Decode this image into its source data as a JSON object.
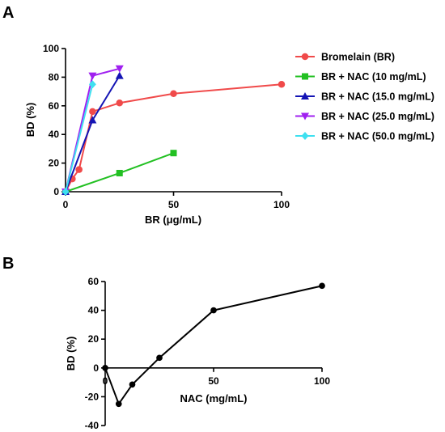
{
  "chart_data": [
    {
      "panel": "A",
      "type": "line",
      "xlabel": "BR (μg/mL)",
      "ylabel": "BD (%)",
      "xlim": [
        0,
        100
      ],
      "ylim": [
        0,
        100
      ],
      "xticks": [
        0,
        50,
        100
      ],
      "yticks": [
        0,
        20,
        40,
        60,
        80,
        100
      ],
      "grid": false,
      "legend_position": "right",
      "series": [
        {
          "name": "Bromelain (BR)",
          "color": "#f04a4a",
          "marker": "circle",
          "x": [
            0,
            3.125,
            6.25,
            12.5,
            25,
            50,
            100
          ],
          "y": [
            0,
            9,
            15.5,
            56,
            62,
            68.5,
            75
          ]
        },
        {
          "name": "BR + NAC (10 mg/mL)",
          "color": "#22c022",
          "marker": "square",
          "x": [
            0,
            25,
            50
          ],
          "y": [
            0,
            13,
            27
          ]
        },
        {
          "name": "BR + NAC (15.0 mg/mL)",
          "color": "#1414b4",
          "marker": "triangle-up",
          "x": [
            0,
            12.5,
            25
          ],
          "y": [
            0,
            50,
            81
          ]
        },
        {
          "name": "BR + NAC (25.0 mg/mL)",
          "color": "#a020f0",
          "marker": "triangle-down",
          "x": [
            0,
            12.5,
            25
          ],
          "y": [
            0,
            81,
            86
          ]
        },
        {
          "name": "BR + NAC (50.0 mg/mL)",
          "color": "#3ee0f0",
          "marker": "diamond",
          "x": [
            0,
            12.5
          ],
          "y": [
            0,
            75
          ]
        }
      ]
    },
    {
      "panel": "B",
      "type": "line",
      "xlabel": "NAC (mg/mL)",
      "ylabel": "BD (%)",
      "xlim": [
        0,
        100
      ],
      "ylim": [
        -40,
        60
      ],
      "xticks": [
        0,
        50,
        100
      ],
      "yticks": [
        -40,
        -20,
        0,
        20,
        40,
        60
      ],
      "grid": false,
      "series": [
        {
          "color": "#000000",
          "marker": "circle",
          "x": [
            0,
            6.25,
            12.5,
            25,
            50,
            100
          ],
          "y": [
            0,
            -25,
            -11.5,
            7,
            40,
            57
          ]
        }
      ]
    }
  ]
}
